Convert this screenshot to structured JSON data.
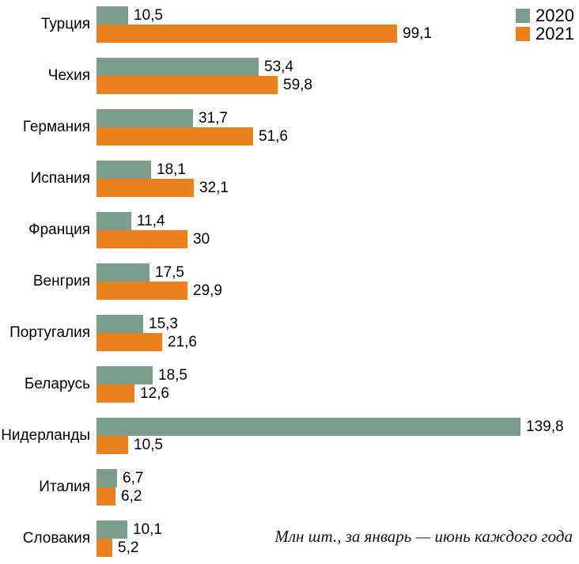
{
  "chart_data": {
    "type": "bar",
    "orientation": "horizontal",
    "title": "",
    "caption": "Млн шт., за январь — июнь каждого года",
    "legend_position": "top-right",
    "value_labels": true,
    "grid": false,
    "xlim": [
      0,
      145
    ],
    "categories": [
      "Турция",
      "Чехия",
      "Германия",
      "Испания",
      "Франция",
      "Венгрия",
      "Португалия",
      "Беларусь",
      "Нидерланды",
      "Италия",
      "Словакия"
    ],
    "series": [
      {
        "name": "2020",
        "color": "#7c9d8c",
        "values": [
          10.5,
          53.4,
          31.7,
          18.1,
          11.4,
          17.5,
          15.3,
          18.5,
          139.8,
          6.7,
          10.1
        ],
        "labels": [
          "10,5",
          "53,4",
          "31,7",
          "18,1",
          "11,4",
          "17,5",
          "15,3",
          "18,5",
          "139,8",
          "6,7",
          "10,1"
        ]
      },
      {
        "name": "2021",
        "color": "#e8811e",
        "values": [
          99.1,
          59.8,
          51.6,
          32.1,
          30,
          29.9,
          21.6,
          12.6,
          10.5,
          6.2,
          5.2
        ],
        "labels": [
          "99,1",
          "59,8",
          "51,6",
          "32,1",
          "30",
          "29,9",
          "21,6",
          "12,6",
          "10,5",
          "6,2",
          "5,2"
        ]
      }
    ]
  }
}
